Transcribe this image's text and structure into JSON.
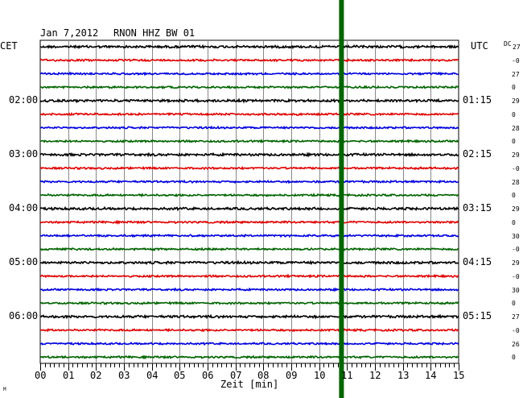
{
  "header": {
    "date": "Jan 7,2012",
    "station": "RNON HHZ BW 01",
    "left_tz": "CET",
    "right_tz": "UTC",
    "dc_label": "DC"
  },
  "chart_data": {
    "type": "line",
    "title": "Jan 7,2012   RNON HHZ BW 01",
    "xlabel": "Zeit [min]",
    "ylabel": "",
    "xlim": [
      0,
      15
    ],
    "x_ticks": [
      "00",
      "01",
      "02",
      "03",
      "04",
      "05",
      "06",
      "07",
      "08",
      "09",
      "10",
      "11",
      "12",
      "13",
      "14",
      "15"
    ],
    "grid": true,
    "trace_count": 24,
    "trace_colors": [
      "#000000",
      "#e00000",
      "#0000e0",
      "#006400"
    ],
    "left_time_labels": [
      {
        "trace": 4,
        "label": "02:00"
      },
      {
        "trace": 8,
        "label": "03:00"
      },
      {
        "trace": 12,
        "label": "04:00"
      },
      {
        "trace": 16,
        "label": "05:00"
      },
      {
        "trace": 20,
        "label": "06:00"
      }
    ],
    "right_time_labels": [
      {
        "trace": 4,
        "label": "01:15"
      },
      {
        "trace": 8,
        "label": "02:15"
      },
      {
        "trace": 12,
        "label": "03:15"
      },
      {
        "trace": 16,
        "label": "04:15"
      },
      {
        "trace": 20,
        "label": "05:15"
      }
    ],
    "dc_offsets": [
      "27",
      "-0",
      "27",
      "0",
      "29",
      "0",
      "28",
      "0",
      "29",
      "-0",
      "28",
      "0",
      "29",
      "0",
      "30",
      "-0",
      "29",
      "-0",
      "30",
      "0",
      "27",
      "-0",
      "26",
      "0"
    ],
    "event_marker": {
      "x_min": 10.8,
      "color": "#006400"
    },
    "corner_mark": "M"
  }
}
